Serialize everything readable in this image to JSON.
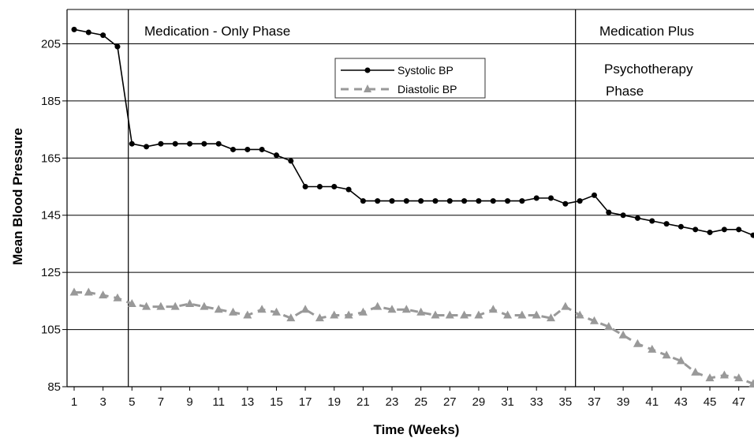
{
  "chart_data": {
    "type": "line",
    "xlabel": "Time (Weeks)",
    "ylabel": "Mean Blood Pressure",
    "xlim": [
      1,
      48
    ],
    "ylim": [
      85,
      217
    ],
    "x_ticks": [
      1,
      3,
      5,
      7,
      9,
      11,
      13,
      15,
      17,
      19,
      21,
      23,
      25,
      27,
      29,
      31,
      33,
      35,
      37,
      39,
      41,
      43,
      45,
      47
    ],
    "y_ticks": [
      85,
      105,
      125,
      145,
      165,
      185,
      205
    ],
    "grid": "horizontal",
    "legend_position": "top-center",
    "phase_dividers": [
      4.75,
      35.7
    ],
    "phase_labels": [
      "Medication - Only Phase",
      "Medication Plus",
      "Psychotherapy",
      "Phase"
    ],
    "x": [
      1,
      2,
      3,
      4,
      5,
      6,
      7,
      8,
      9,
      10,
      11,
      12,
      13,
      14,
      15,
      16,
      17,
      18,
      19,
      20,
      21,
      22,
      23,
      24,
      25,
      26,
      27,
      28,
      29,
      30,
      31,
      32,
      33,
      34,
      35,
      36,
      37,
      38,
      39,
      40,
      41,
      42,
      43,
      44,
      45,
      46,
      47,
      48
    ],
    "series": [
      {
        "name": "Systolic BP",
        "color": "#000000",
        "marker": "circle",
        "line": "solid",
        "values": [
          210,
          209,
          208,
          204,
          170,
          169,
          170,
          170,
          170,
          170,
          170,
          168,
          168,
          168,
          166,
          164,
          155,
          155,
          155,
          154,
          150,
          150,
          150,
          150,
          150,
          150,
          150,
          150,
          150,
          150,
          150,
          150,
          151,
          151,
          149,
          150,
          152,
          146,
          145,
          144,
          143,
          142,
          141,
          140,
          139,
          140,
          140,
          138
        ]
      },
      {
        "name": "Diastolic BP",
        "color": "#999999",
        "marker": "triangle",
        "line": "dashed",
        "values": [
          118,
          118,
          117,
          116,
          114,
          113,
          113,
          113,
          114,
          113,
          112,
          111,
          110,
          112,
          111,
          109,
          112,
          109,
          110,
          110,
          111,
          113,
          112,
          112,
          111,
          110,
          110,
          110,
          110,
          112,
          110,
          110,
          110,
          109,
          113,
          110,
          108,
          106,
          103,
          100,
          98,
          96,
          94,
          90,
          88,
          89,
          88,
          86
        ]
      }
    ]
  }
}
